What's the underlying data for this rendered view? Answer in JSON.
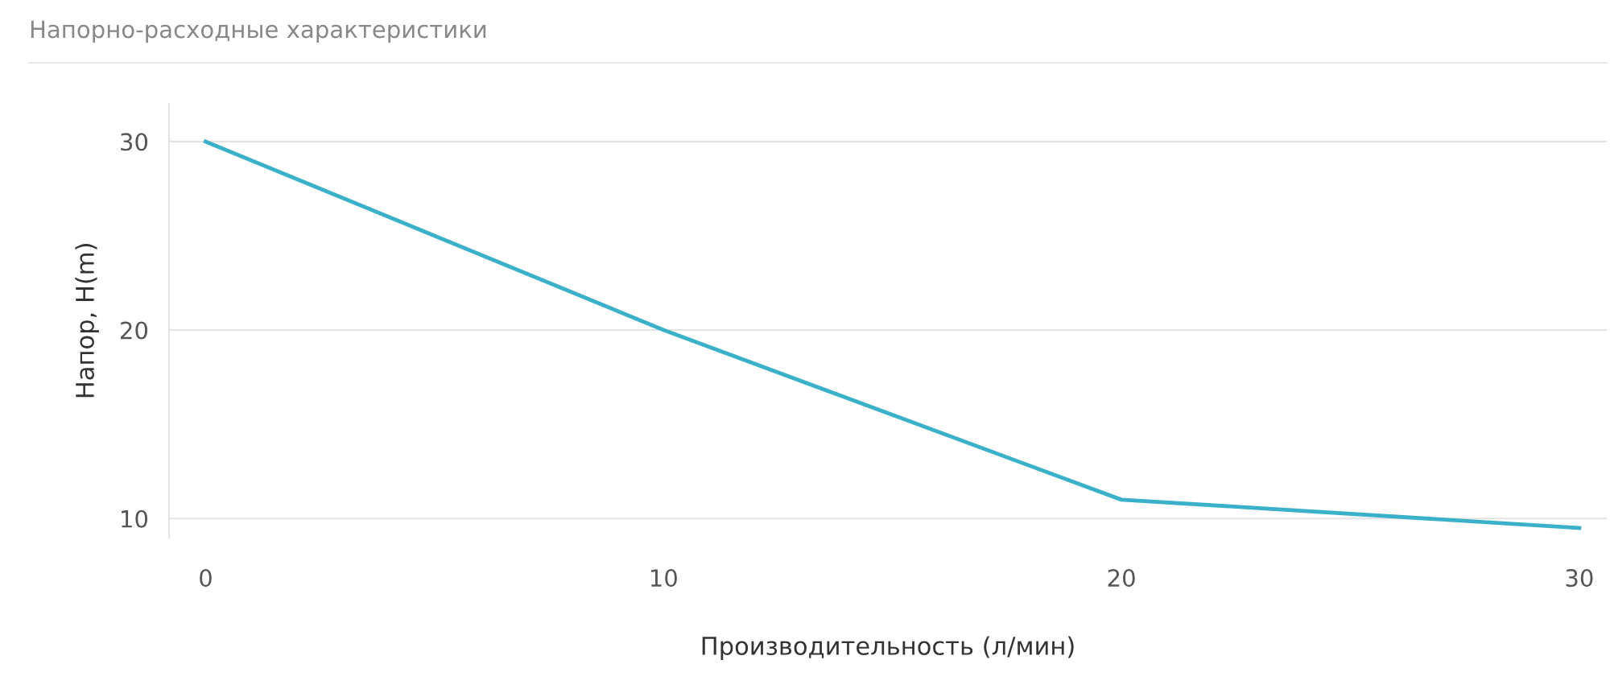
{
  "chart_data": {
    "type": "line",
    "title": "Напорно-расходные характеристики",
    "xlabel": "Производительность (л/мин)",
    "ylabel": "Напор, H(m)",
    "x": [
      0,
      10,
      20,
      30
    ],
    "series": [
      {
        "color": "#3bb0c9",
        "values": [
          30,
          20,
          11,
          9.5
        ]
      }
    ],
    "xlim": [
      -0.8,
      30.6
    ],
    "ylim": [
      9,
      32
    ],
    "xticks": [
      0,
      10,
      20,
      30
    ],
    "yticks": [
      10,
      20,
      30
    ],
    "grid": "y",
    "marker": "none",
    "line_style": "solid"
  }
}
